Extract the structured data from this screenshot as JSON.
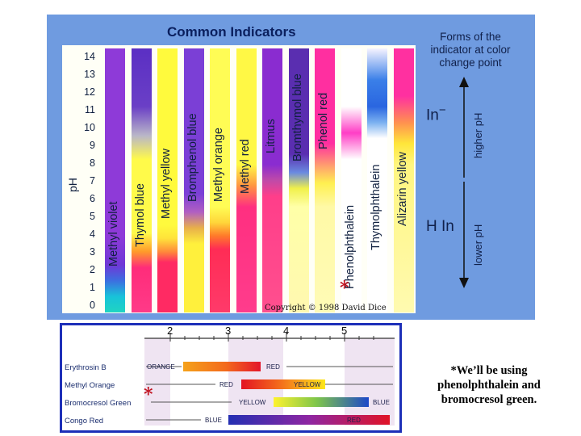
{
  "chart": {
    "title": "Common Indicators",
    "y_axis_label": "pH",
    "y_ticks": [
      "14",
      "13",
      "12",
      "11",
      "10",
      "9",
      "8",
      "7",
      "6",
      "5",
      "4",
      "3",
      "2",
      "1",
      "0"
    ],
    "copyright": "Copyright © 1998 David Dice",
    "asterisk": "*",
    "indicators": [
      {
        "name": "Methyl violet"
      },
      {
        "name": "Thymol blue"
      },
      {
        "name": "Methyl yellow"
      },
      {
        "name": "Bromphenol blue"
      },
      {
        "name": "Methyl orange"
      },
      {
        "name": "Methyl red"
      },
      {
        "name": "Litmus"
      },
      {
        "name": "Bromthymol blue"
      },
      {
        "name": "Phenol red"
      },
      {
        "name": "Phenolphthalein"
      },
      {
        "name": "Thymolphthalein"
      },
      {
        "name": "Alizarin yellow"
      }
    ]
  },
  "legend": {
    "forms_label": "Forms of the\nindicator at color\nchange point",
    "in_minus": "In",
    "in_minus_sup": "−",
    "h_in": "H In",
    "higher_ph": "higher pH",
    "lower_ph": "lower pH"
  },
  "table": {
    "ticks": [
      "2",
      "3",
      "4",
      "5"
    ],
    "asterisk": "*",
    "rows": [
      {
        "name": "Erythrosin B",
        "left_word": "ORANGE",
        "right_word": "RED"
      },
      {
        "name": "Methyl Orange",
        "left_word": "RED",
        "right_word": "YELLOW"
      },
      {
        "name": "Bromocresol Green",
        "left_word": "YELLOW",
        "right_word": "BLUE"
      },
      {
        "name": "Congo Red",
        "left_word": "BLUE",
        "right_word": "RED"
      }
    ]
  },
  "note": "*We’ll be using phenolphthalein and bromocresol green."
}
